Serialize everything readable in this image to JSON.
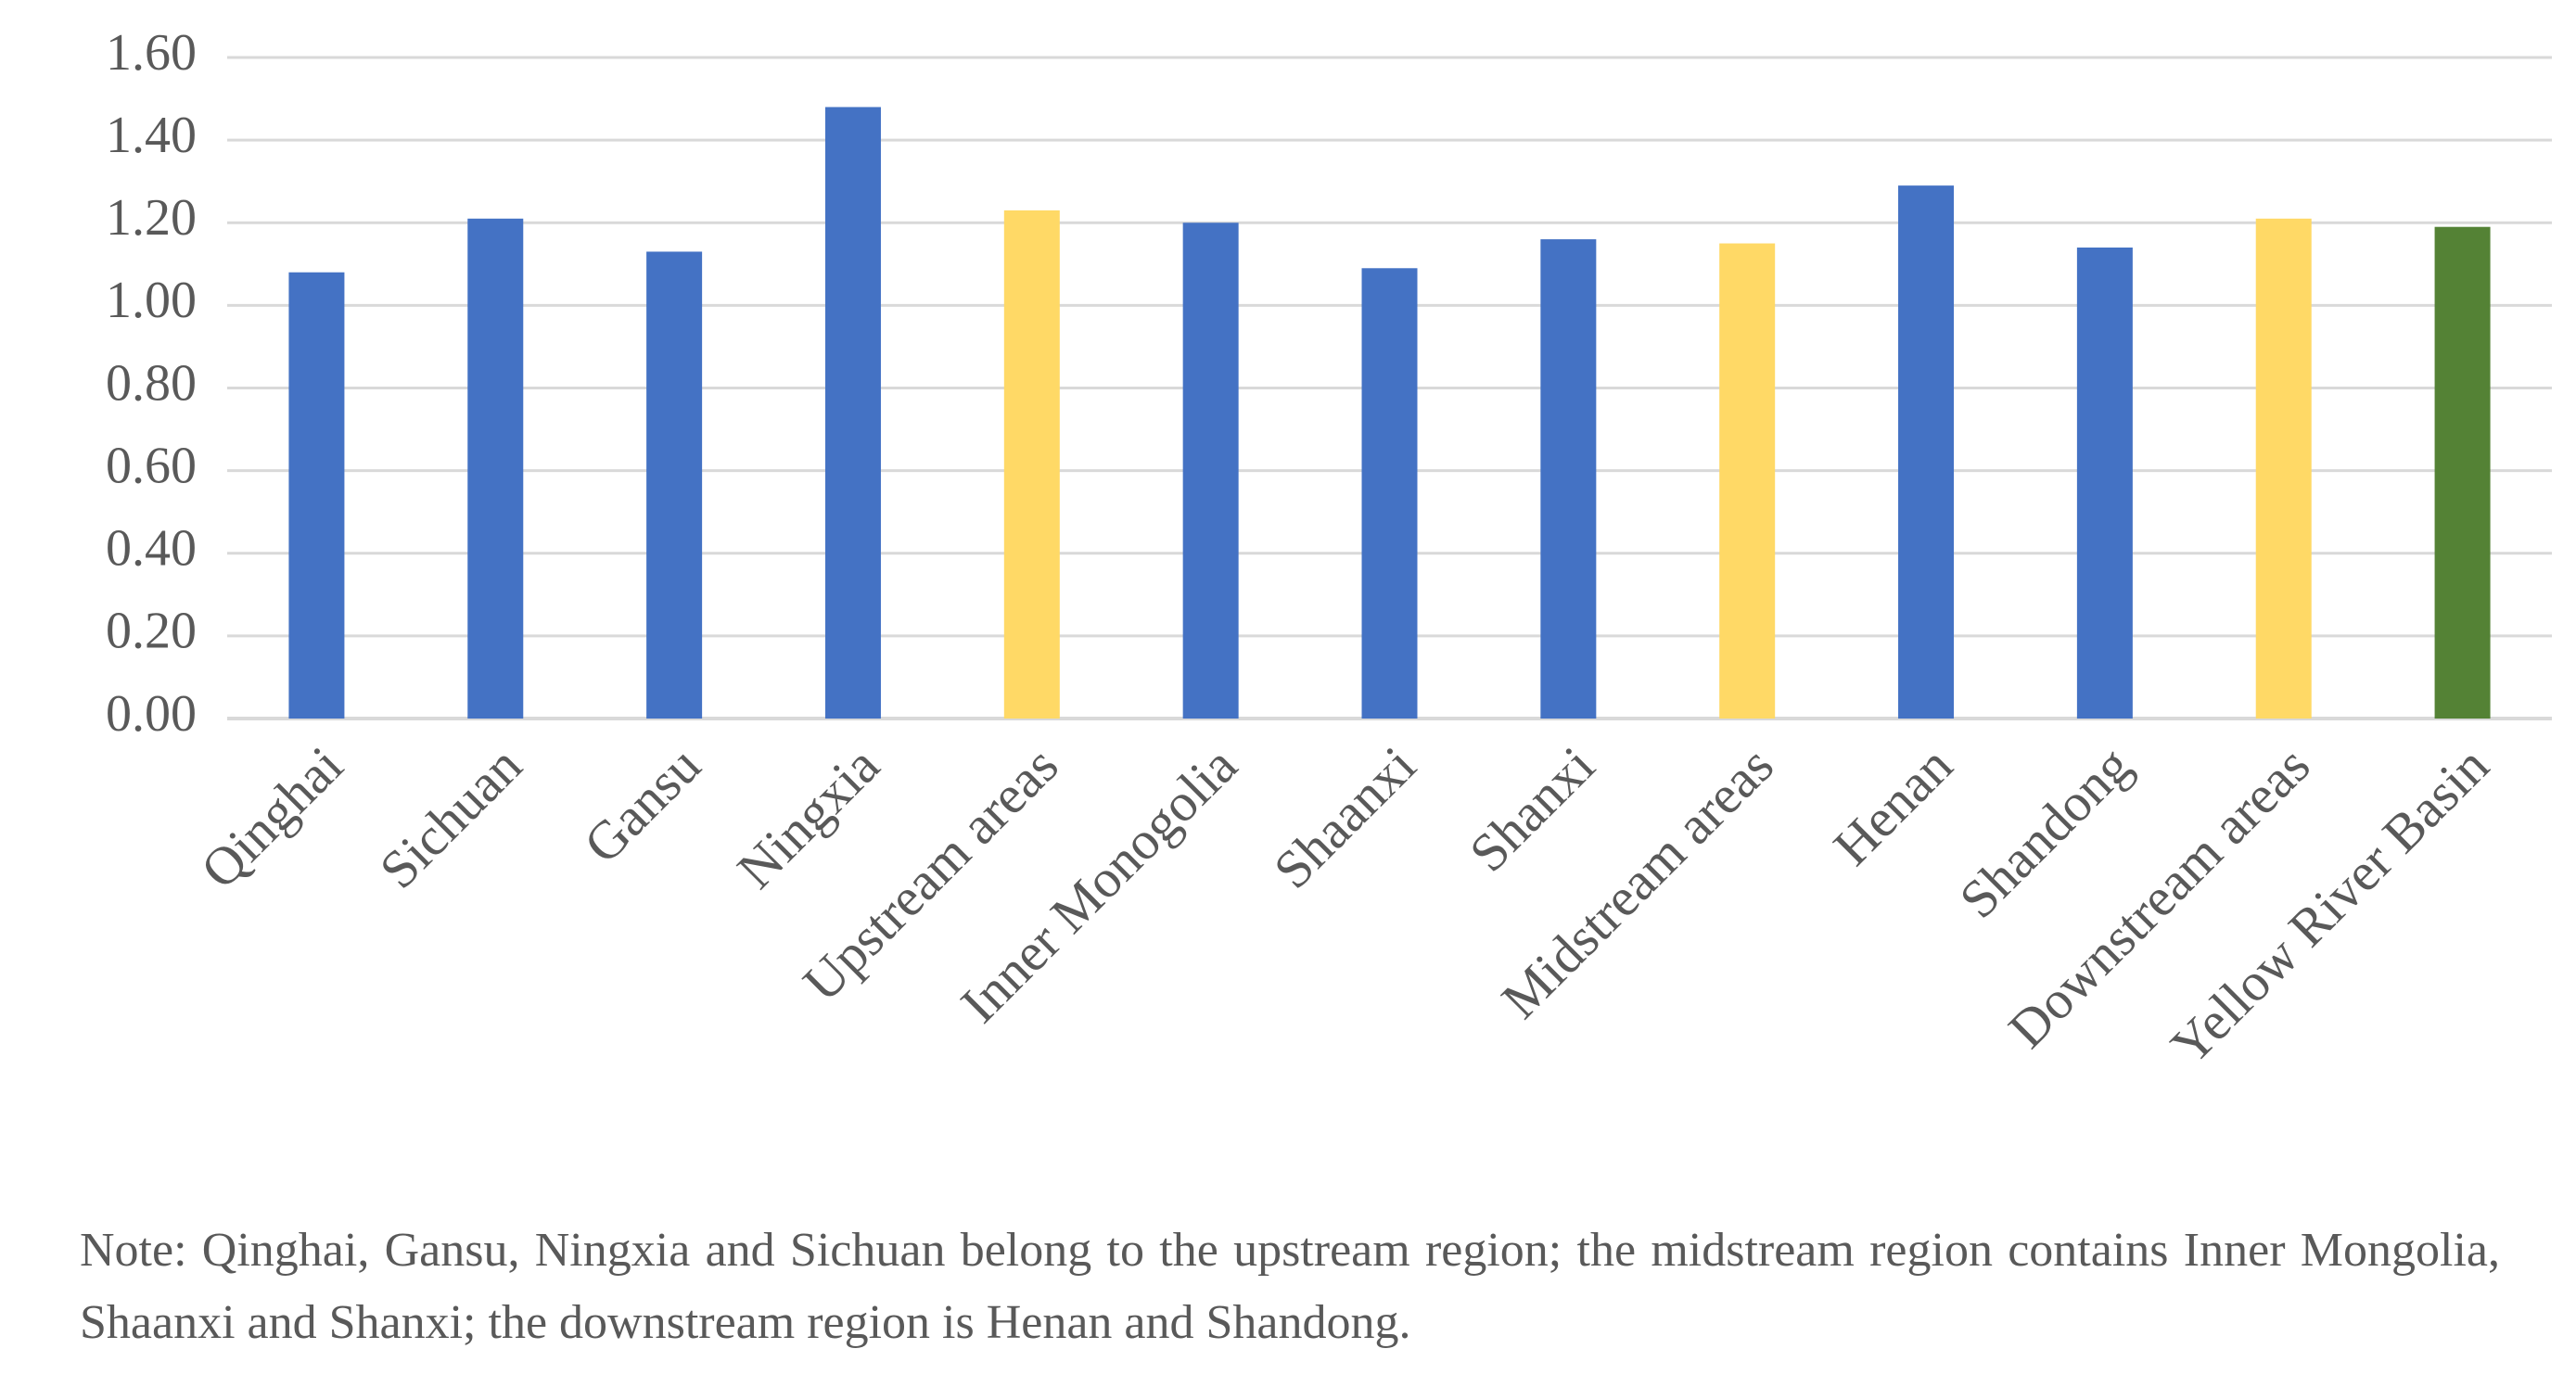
{
  "chart_data": {
    "type": "bar",
    "title": "",
    "xlabel": "",
    "ylabel": "",
    "categories": [
      "Qinghai",
      "Sichuan",
      "Gansu",
      "Ningxia",
      "Upstream areas",
      "Inner Monogolia",
      "Shaanxi",
      "Shanxi",
      "Midstream areas",
      "Henan",
      "Shandong",
      "Downstream areas",
      "Yellow River Basin"
    ],
    "values": [
      1.08,
      1.21,
      1.13,
      1.48,
      1.23,
      1.2,
      1.09,
      1.16,
      1.15,
      1.29,
      1.14,
      1.21,
      1.19
    ],
    "bar_colors": [
      "#4472C4",
      "#4472C4",
      "#4472C4",
      "#4472C4",
      "#FFD966",
      "#4472C4",
      "#4472C4",
      "#4472C4",
      "#FFD966",
      "#4472C4",
      "#4472C4",
      "#FFD966",
      "#548235"
    ],
    "ylim": [
      0,
      1.6
    ],
    "yticks": [
      "0.00",
      "0.20",
      "0.40",
      "0.60",
      "0.80",
      "1.00",
      "1.20",
      "1.40",
      "1.60"
    ],
    "grid": true,
    "legend": "none"
  },
  "colors": {
    "gridline": "#D9D9D9",
    "tick_text": "#595959"
  },
  "note": "Note: Qinghai, Gansu, Ningxia and Sichuan belong to the upstream region; the midstream region contains Inner Mongolia, Shaanxi and Shanxi; the downstream region is Henan and Shandong."
}
